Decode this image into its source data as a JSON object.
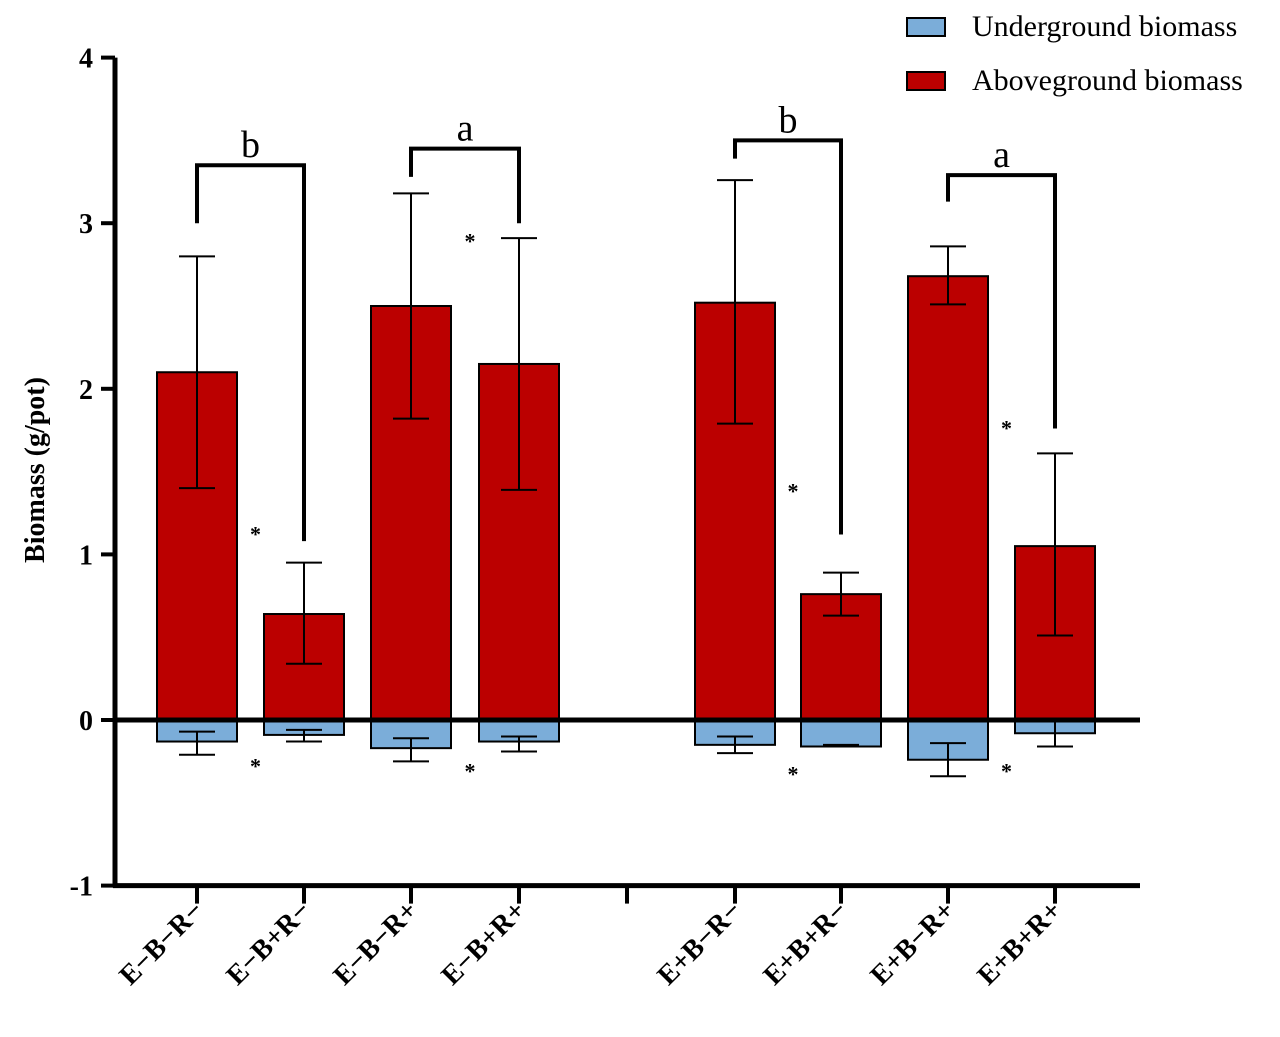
{
  "chart_data": {
    "type": "bar",
    "stacked_diverging": true,
    "ylabel": "Biomass (g/pot)",
    "xlabel": "",
    "ylim": [
      -1,
      4
    ],
    "yticks": [
      "-1",
      "0",
      "1",
      "2",
      "3",
      "4"
    ],
    "grid": false,
    "legend_position": "top-right",
    "categories": [
      "E−B−R−",
      "E−B+R−",
      "E−B−R+",
      "E−B+R+",
      "E+B−R−",
      "E+B+R−",
      "E+B−R+",
      "E+B+R+"
    ],
    "series": [
      {
        "name": "Underground biomass",
        "color": "#7BADD9",
        "values": [
          -0.13,
          -0.09,
          -0.17,
          -0.13,
          -0.15,
          -0.16,
          -0.24,
          -0.08
        ],
        "error_low": [
          -0.21,
          -0.13,
          -0.25,
          -0.19,
          -0.2,
          -0.16,
          -0.34,
          -0.16
        ],
        "error_high": [
          -0.07,
          -0.06,
          -0.11,
          -0.1,
          -0.1,
          -0.15,
          -0.14,
          0
        ]
      },
      {
        "name": "Aboveground biomass",
        "color": "#BB0000",
        "values": [
          2.1,
          0.64,
          2.5,
          2.15,
          2.52,
          0.76,
          2.68,
          1.05
        ],
        "error_low": [
          1.4,
          0.34,
          1.82,
          1.39,
          1.79,
          0.63,
          2.51,
          0.51
        ],
        "error_high": [
          2.8,
          0.95,
          3.18,
          2.91,
          3.26,
          0.89,
          2.86,
          1.61
        ]
      }
    ],
    "brackets": [
      {
        "from": 0,
        "to": 1,
        "label": "b",
        "top": 3.35,
        "left_end": 3.0,
        "right_end": 1.08
      },
      {
        "from": 2,
        "to": 3,
        "label": "a",
        "top": 3.45,
        "left_end": 3.28,
        "right_end": 3.0
      },
      {
        "from": 4,
        "to": 5,
        "label": "b",
        "top": 3.5,
        "left_end": 3.39,
        "right_end": 1.12
      },
      {
        "from": 6,
        "to": 7,
        "label": "a",
        "top": 3.29,
        "left_end": 3.13,
        "right_end": 1.76
      }
    ],
    "significance_marks": [
      {
        "after": 0,
        "y": 1.15,
        "label": "*"
      },
      {
        "after": 2,
        "y": 2.92,
        "label": "*"
      },
      {
        "after": 4,
        "y": 1.41,
        "label": "*"
      },
      {
        "after": 6,
        "y": 1.79,
        "label": "*"
      },
      {
        "after": 0,
        "y": -0.25,
        "label": "*"
      },
      {
        "after": 2,
        "y": -0.28,
        "label": "*"
      },
      {
        "after": 4,
        "y": -0.3,
        "label": "*"
      },
      {
        "after": 6,
        "y": -0.28,
        "label": "*"
      }
    ]
  }
}
